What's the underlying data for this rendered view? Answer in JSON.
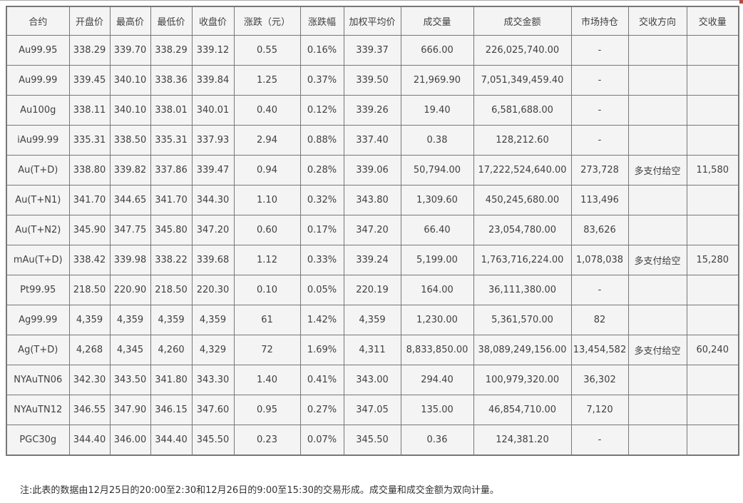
{
  "table": {
    "columns": [
      "合约",
      "开盘价",
      "最高价",
      "最低价",
      "收盘价",
      "涨跌（元）",
      "涨跌幅",
      "加权平均价",
      "成交量",
      "成交金额",
      "市场持仓",
      "交收方向",
      "交收量"
    ],
    "rows": [
      [
        "Au99.95",
        "338.29",
        "339.70",
        "338.29",
        "339.12",
        "0.55",
        "0.16%",
        "339.37",
        "666.00",
        "226,025,740.00",
        "-",
        "",
        ""
      ],
      [
        "Au99.99",
        "339.45",
        "340.10",
        "338.36",
        "339.84",
        "1.25",
        "0.37%",
        "339.50",
        "21,969.90",
        "7,051,349,459.40",
        "-",
        "",
        ""
      ],
      [
        "Au100g",
        "338.11",
        "340.10",
        "338.01",
        "340.01",
        "0.40",
        "0.12%",
        "339.26",
        "19.40",
        "6,581,688.00",
        "-",
        "",
        ""
      ],
      [
        "iAu99.99",
        "335.31",
        "338.50",
        "335.31",
        "337.93",
        "2.94",
        "0.88%",
        "337.40",
        "0.38",
        "128,212.60",
        "-",
        "",
        ""
      ],
      [
        "Au(T+D)",
        "338.80",
        "339.82",
        "337.86",
        "339.47",
        "0.94",
        "0.28%",
        "339.06",
        "50,794.00",
        "17,222,524,640.00",
        "273,728",
        "多支付给空",
        "11,580"
      ],
      [
        "Au(T+N1)",
        "341.70",
        "344.65",
        "341.70",
        "344.30",
        "1.10",
        "0.32%",
        "343.80",
        "1,309.60",
        "450,245,680.00",
        "113,496",
        "",
        ""
      ],
      [
        "Au(T+N2)",
        "345.90",
        "347.75",
        "345.80",
        "347.20",
        "0.60",
        "0.17%",
        "347.20",
        "66.40",
        "23,054,780.00",
        "83,626",
        "",
        ""
      ],
      [
        "mAu(T+D)",
        "338.42",
        "339.98",
        "338.22",
        "339.68",
        "1.12",
        "0.33%",
        "339.24",
        "5,199.00",
        "1,763,716,224.00",
        "1,078,038",
        "多支付给空",
        "15,280"
      ],
      [
        "Pt99.95",
        "218.50",
        "220.90",
        "218.50",
        "220.30",
        "0.10",
        "0.05%",
        "220.19",
        "164.00",
        "36,111,380.00",
        "-",
        "",
        ""
      ],
      [
        "Ag99.99",
        "4,359",
        "4,359",
        "4,359",
        "4,359",
        "61",
        "1.42%",
        "4,359",
        "1,230.00",
        "5,361,570.00",
        "82",
        "",
        ""
      ],
      [
        "Ag(T+D)",
        "4,268",
        "4,345",
        "4,260",
        "4,329",
        "72",
        "1.69%",
        "4,311",
        "8,833,850.00",
        "38,089,249,156.00",
        "13,454,582",
        "多支付给空",
        "60,240"
      ],
      [
        "NYAuTN06",
        "342.30",
        "343.50",
        "341.80",
        "343.30",
        "1.40",
        "0.41%",
        "343.00",
        "294.40",
        "100,979,320.00",
        "36,302",
        "",
        ""
      ],
      [
        "NYAuTN12",
        "346.55",
        "347.90",
        "346.15",
        "347.60",
        "0.95",
        "0.27%",
        "347.05",
        "135.00",
        "46,854,710.00",
        "7,120",
        "",
        ""
      ],
      [
        "PGC30g",
        "344.40",
        "346.00",
        "344.40",
        "345.50",
        "0.23",
        "0.07%",
        "345.50",
        "0.36",
        "124,381.20",
        "-",
        "",
        ""
      ]
    ]
  },
  "note": "注:此表的数据由12月25日的20:00至2:30和12月26日的9:00至15:30的交易形成。成交量和成交金额为双向计量。",
  "colors": {
    "cell_background": "#f4f4f4",
    "border": "#777777",
    "text": "#404040",
    "top_rule": "#ababab",
    "corner_mark": "#b84a46"
  }
}
